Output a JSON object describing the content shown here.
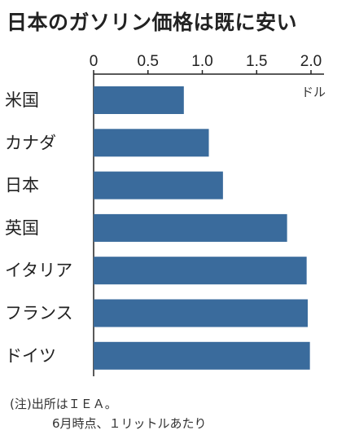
{
  "chart_data": {
    "type": "bar",
    "orientation": "horizontal",
    "title": "日本のガソリン価格は既に安い",
    "unit": "ドル",
    "categories": [
      "米国",
      "カナダ",
      "日本",
      "英国",
      "イタリア",
      "フランス",
      "ドイツ"
    ],
    "values": [
      0.83,
      1.06,
      1.19,
      1.78,
      1.96,
      1.97,
      1.99
    ],
    "xlim": [
      0,
      2.0
    ],
    "xticks": [
      "0",
      "0.5",
      "1.0",
      "1.5",
      "2.0"
    ],
    "xtick_values": [
      0,
      0.5,
      1.0,
      1.5,
      2.0
    ],
    "grid": false,
    "bar_color": "#3a6b9c"
  },
  "notes": {
    "line1": "(注)出所はＩＥＡ。",
    "line2": "6月時点、１リットルあたり"
  }
}
